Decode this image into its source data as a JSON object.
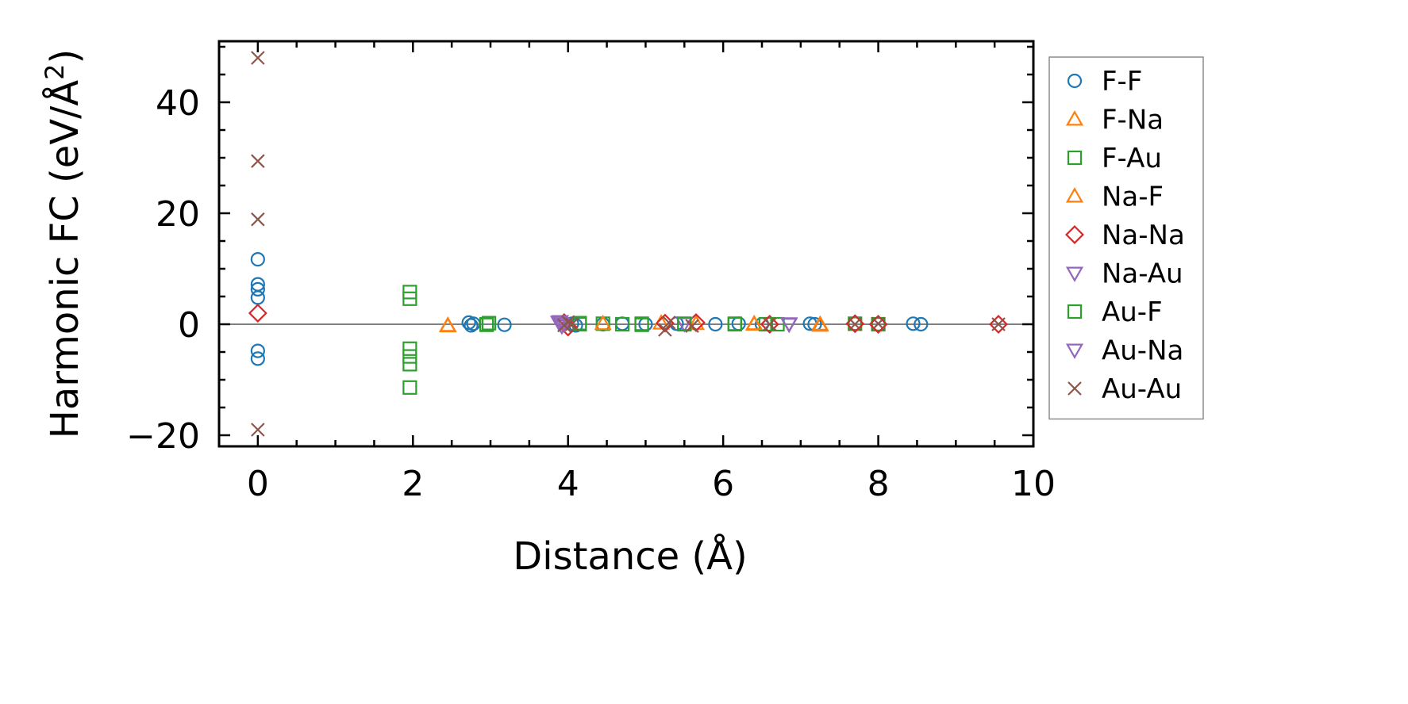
{
  "chart_data": {
    "type": "scatter",
    "xlabel": "Distance (Å)",
    "ylabel_main": "Harmonic FC (eV/Å",
    "ylabel_sup": "2",
    "ylabel_end": ")",
    "xlim": [
      -0.5,
      10
    ],
    "ylim": [
      -22,
      51
    ],
    "xticks": [
      0,
      2,
      4,
      6,
      8,
      10
    ],
    "xtick_labels": [
      "0",
      "2",
      "4",
      "6",
      "8",
      "10"
    ],
    "yticks": [
      -20,
      0,
      20,
      40
    ],
    "ytick_labels": [
      "−20",
      "0",
      "20",
      "40"
    ],
    "x_minor_step": 0.5,
    "y_minor_step": 5,
    "ticks_direction": "in",
    "zero_line": true,
    "grid": false,
    "legend_position": "outside right",
    "series": [
      {
        "name": "F-F",
        "marker": "circle",
        "color": "#1f77b4",
        "points": [
          [
            0,
            11.7
          ],
          [
            0,
            7.2
          ],
          [
            0,
            6.3
          ],
          [
            0,
            4.8
          ],
          [
            0,
            -4.8
          ],
          [
            0,
            -6.2
          ],
          [
            2.72,
            0.3
          ],
          [
            2.75,
            -0.2
          ],
          [
            2.78,
            0.1
          ],
          [
            3.18,
            -0.1
          ],
          [
            4.05,
            0.1
          ],
          [
            4.1,
            -0.2
          ],
          [
            4.45,
            0
          ],
          [
            4.7,
            0.1
          ],
          [
            5.0,
            0
          ],
          [
            5.4,
            0.1
          ],
          [
            5.9,
            0
          ],
          [
            6.2,
            0.1
          ],
          [
            6.5,
            0
          ],
          [
            7.12,
            0.1
          ],
          [
            7.18,
            0
          ],
          [
            7.7,
            0.1
          ],
          [
            8.0,
            0
          ],
          [
            8.45,
            0.1
          ],
          [
            8.55,
            0
          ]
        ]
      },
      {
        "name": "F-Na",
        "marker": "triangle-up",
        "color": "#ff7f0e",
        "points": [
          [
            2.45,
            -0.3
          ],
          [
            5.2,
            0.2
          ],
          [
            6.4,
            0
          ],
          [
            7.25,
            -0.2
          ]
        ]
      },
      {
        "name": "F-Au",
        "marker": "square",
        "color": "#2ca02c",
        "points": [
          [
            1.96,
            5.8
          ],
          [
            1.96,
            4.6
          ],
          [
            1.96,
            -4.4
          ],
          [
            1.96,
            -5.8
          ],
          [
            1.96,
            -7.2
          ],
          [
            1.96,
            -11.4
          ],
          [
            2.95,
            -0.1
          ],
          [
            2.98,
            0.2
          ],
          [
            4.15,
            0
          ],
          [
            4.45,
            0.1
          ],
          [
            4.7,
            0
          ],
          [
            4.95,
            0.1
          ],
          [
            5.5,
            0
          ],
          [
            6.15,
            0.1
          ],
          [
            6.55,
            0
          ],
          [
            7.7,
            0.1
          ],
          [
            8.0,
            0
          ]
        ]
      },
      {
        "name": "Na-F",
        "marker": "triangle-up",
        "color": "#ff7f0e",
        "points": [
          [
            2.45,
            -0.2
          ],
          [
            4.45,
            0.1
          ],
          [
            5.65,
            0.1
          ],
          [
            6.4,
            0.1
          ],
          [
            7.25,
            0
          ]
        ]
      },
      {
        "name": "Na-Na",
        "marker": "diamond",
        "color": "#d62728",
        "points": [
          [
            0,
            2.0
          ],
          [
            3.95,
            0.3
          ],
          [
            4.0,
            -0.5
          ],
          [
            5.25,
            0.2
          ],
          [
            5.65,
            0.3
          ],
          [
            6.6,
            0
          ],
          [
            7.7,
            0.1
          ],
          [
            8.0,
            0
          ],
          [
            9.55,
            0
          ]
        ]
      },
      {
        "name": "Na-Au",
        "marker": "triangle-down",
        "color": "#9467bd",
        "points": [
          [
            3.88,
            0.4
          ],
          [
            3.9,
            0.1
          ],
          [
            3.92,
            -0.3
          ],
          [
            5.5,
            0.1
          ],
          [
            6.85,
            0
          ]
        ]
      },
      {
        "name": "Au-F",
        "marker": "square",
        "color": "#2ca02c",
        "points": [
          [
            2.95,
            0
          ],
          [
            4.15,
            0.2
          ],
          [
            4.95,
            -0.1
          ],
          [
            5.5,
            0.1
          ],
          [
            6.15,
            0
          ],
          [
            6.7,
            0
          ]
        ]
      },
      {
        "name": "Au-Na",
        "marker": "triangle-down",
        "color": "#9467bd",
        "points": [
          [
            3.9,
            0.5
          ],
          [
            3.95,
            0
          ],
          [
            6.85,
            0.1
          ]
        ]
      },
      {
        "name": "Au-Au",
        "marker": "x",
        "color": "#8c564b",
        "points": [
          [
            0,
            48.0
          ],
          [
            0,
            29.4
          ],
          [
            0,
            18.9
          ],
          [
            0,
            -19.0
          ],
          [
            3.95,
            -0.2
          ],
          [
            4.0,
            0.4
          ],
          [
            4.05,
            0
          ],
          [
            5.25,
            -1.0
          ],
          [
            5.3,
            0.3
          ],
          [
            5.6,
            -0.3
          ],
          [
            6.6,
            0
          ],
          [
            7.7,
            0
          ],
          [
            8.0,
            0.1
          ],
          [
            9.55,
            0
          ]
        ]
      }
    ]
  }
}
